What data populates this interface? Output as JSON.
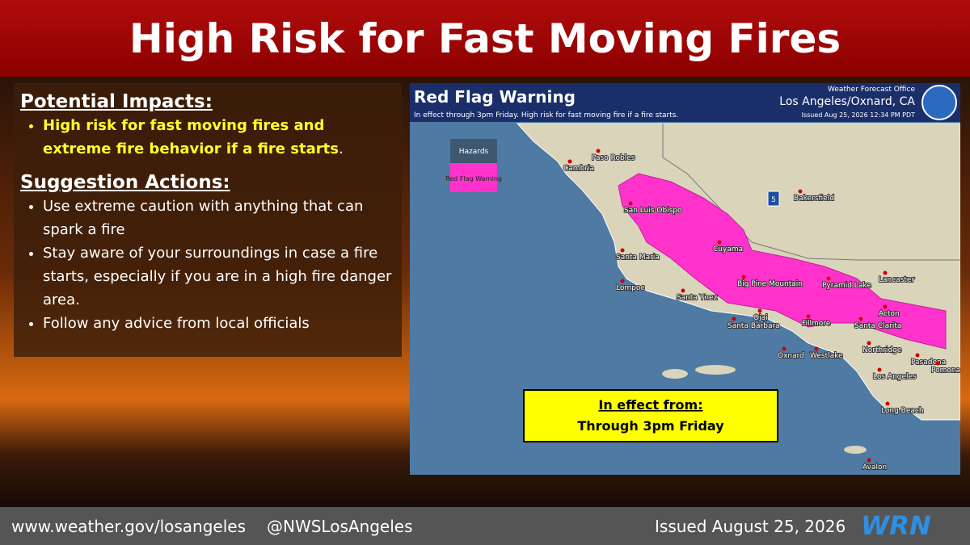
{
  "header": {
    "title": "High Risk for Fast Moving Fires"
  },
  "impacts": {
    "heading": "Potential Impacts:",
    "items": [
      [
        "High risk for fast moving fires and extreme fire behavior if a fire starts",
        "."
      ]
    ]
  },
  "actions": {
    "heading": "Suggestion Actions:",
    "items": [
      "Use extreme caution with anything that can spark a fire",
      "Stay aware of your surroundings in case a fire starts, especially if you are in a high fire danger area.",
      "Follow any advice from local officials"
    ]
  },
  "map": {
    "title": "Red Flag Warning",
    "subtitle": "In effect through 3pm Friday. High risk for fast moving fire if a fire starts.",
    "office_label": "Weather Forecast Office",
    "office": "Los Angeles/Oxnard, CA",
    "issued": "Issued Aug 25, 2026 12:34 PM PDT",
    "legend": {
      "title": "Hazards",
      "items": [
        "Red Flag Warning"
      ]
    },
    "highway": "5",
    "cities": [
      "Paso Robles",
      "Cambria",
      "Bakersfield",
      "San Luis Obispo",
      "Santa Maria",
      "Cuyama",
      "Lompoc",
      "Big Pine Mountain",
      "Pyramid Lake",
      "Lancaster",
      "Santa Ynez",
      "Ojai",
      "Fillmore",
      "Santa Clarita",
      "Acton",
      "Santa Barbara",
      "Northridge",
      "Oxnard",
      "Westlake",
      "Pasadena",
      "Pomona",
      "Los Angeles",
      "Long Beach",
      "Avalon"
    ]
  },
  "effect": {
    "heading": "In effect from:",
    "text": "Through 3pm Friday"
  },
  "footer": {
    "website": "www.weather.gov/losangeles",
    "handle": "@NWSLosAngeles",
    "issued": "Issued August 25, 2026",
    "logo": "WRN"
  }
}
